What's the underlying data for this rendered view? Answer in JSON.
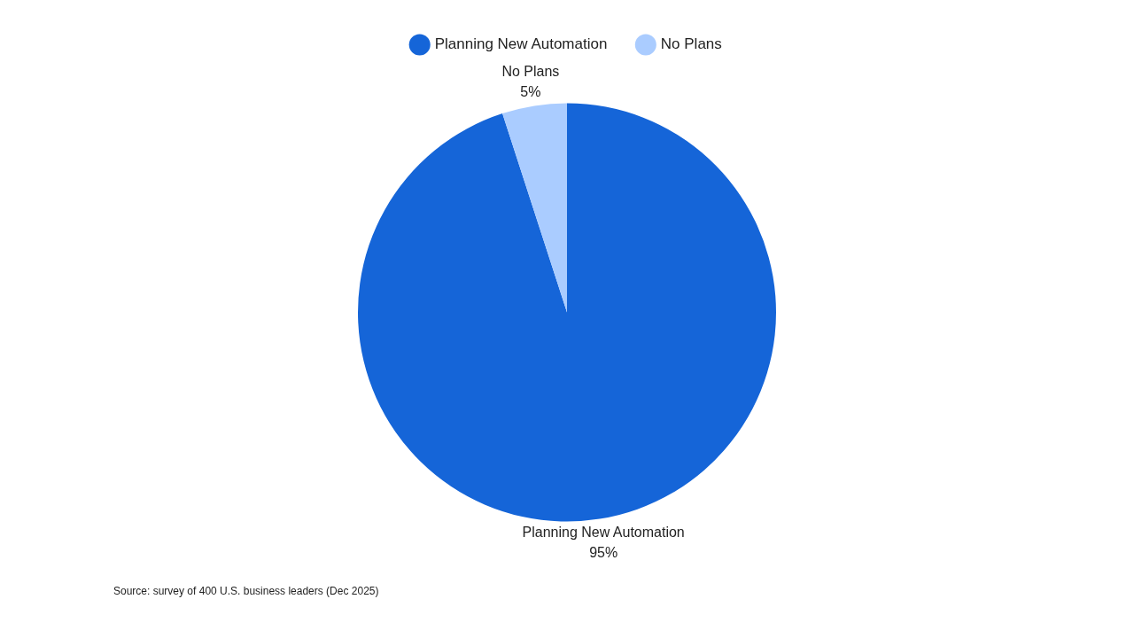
{
  "chart_data": {
    "type": "pie",
    "categories": [
      "Planning New Automation",
      "No Plans"
    ],
    "values": [
      95,
      5
    ],
    "colors": [
      "#1565d8",
      "#aaccff"
    ],
    "value_labels": [
      "95%",
      "5%"
    ],
    "legend": "top",
    "annotations": [
      "Source: survey of 400 U.S. business leaders (Dec 2025)"
    ]
  }
}
